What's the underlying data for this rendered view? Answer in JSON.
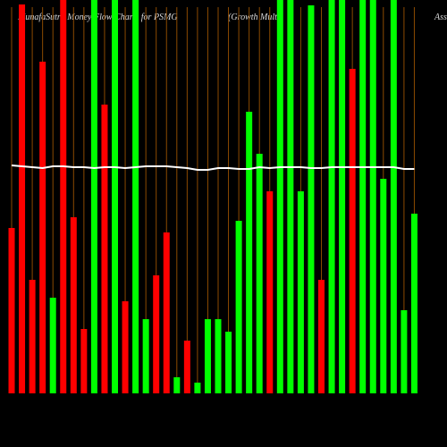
{
  "chart_data": {
    "type": "bar",
    "title": "MunafaSutra Money Flow Charts for PSMG",
    "subtitle": "(Growth Multi",
    "corner_text": "Asse",
    "values": [
      185,
      435,
      127,
      371,
      107,
      440,
      197,
      72,
      440,
      323,
      440,
      103,
      440,
      83,
      132,
      180,
      18,
      59,
      12,
      83,
      83,
      69,
      193,
      315,
      268,
      226,
      440,
      440,
      226,
      434,
      127,
      440,
      440,
      363,
      440,
      440,
      240,
      440,
      93,
      201
    ],
    "colors": [
      "#ff0000",
      "#ff0000",
      "#ff0000",
      "#ff0000",
      "#00ff00",
      "#ff0000",
      "#ff0000",
      "#ff0000",
      "#00ff00",
      "#ff0000",
      "#00ff00",
      "#ff0000",
      "#00ff00",
      "#00ff00",
      "#ff0000",
      "#ff0000",
      "#00ff00",
      "#ff0000",
      "#00ff00",
      "#00ff00",
      "#00ff00",
      "#00ff00",
      "#00ff00",
      "#00ff00",
      "#00ff00",
      "#ff0000",
      "#00ff00",
      "#00ff00",
      "#00ff00",
      "#00ff00",
      "#ff0000",
      "#00ff00",
      "#00ff00",
      "#ff0000",
      "#00ff00",
      "#00ff00",
      "#00ff00",
      "#00ff00",
      "#00ff00",
      "#00ff00"
    ],
    "line": {
      "color": "#ffffff",
      "values": [
        255,
        254,
        253,
        252,
        254,
        254,
        253,
        253,
        252,
        253,
        253,
        252,
        253,
        254,
        254,
        254,
        253,
        252,
        250,
        250,
        252,
        252,
        251,
        251,
        253,
        252,
        253,
        253,
        253,
        252,
        252,
        253,
        253,
        253,
        253,
        253,
        253,
        253,
        251,
        251
      ]
    },
    "ylim": [
      0,
      440
    ],
    "grid": true,
    "grid_color": "#8b4a00"
  }
}
